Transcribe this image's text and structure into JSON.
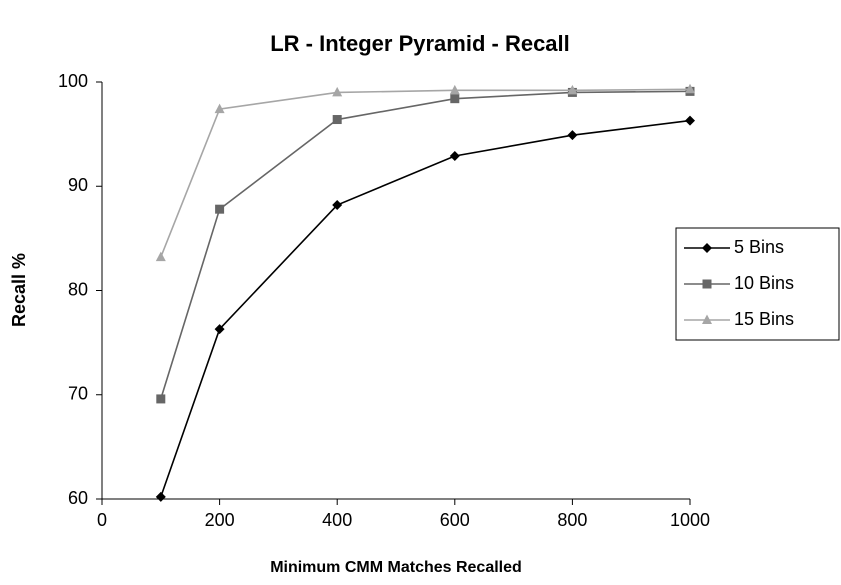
{
  "chart_data": {
    "type": "line",
    "title": "LR - Integer Pyramid - Recall",
    "x_label": "Minimum CMM Matches Recalled",
    "y_label": "Recall %",
    "x": [
      100,
      200,
      400,
      600,
      800,
      1000
    ],
    "series": [
      {
        "name": "5 Bins",
        "color": "#000000",
        "marker": "diamond",
        "values": [
          60.2,
          76.3,
          88.2,
          92.9,
          94.9,
          96.3
        ]
      },
      {
        "name": "10 Bins",
        "color": "#666666",
        "marker": "square",
        "values": [
          69.6,
          87.8,
          96.4,
          98.4,
          99.0,
          99.1
        ]
      },
      {
        "name": "15 Bins",
        "color": "#a6a6a6",
        "marker": "triangle",
        "values": [
          83.2,
          97.4,
          99.0,
          99.2,
          99.2,
          99.3
        ]
      }
    ],
    "xlim": [
      0,
      1000
    ],
    "xticks": [
      0,
      200,
      400,
      600,
      800,
      1000
    ],
    "ylim": [
      60,
      100
    ],
    "yticks": [
      60,
      70,
      80,
      90,
      100
    ],
    "grid": false,
    "legend": "right"
  }
}
